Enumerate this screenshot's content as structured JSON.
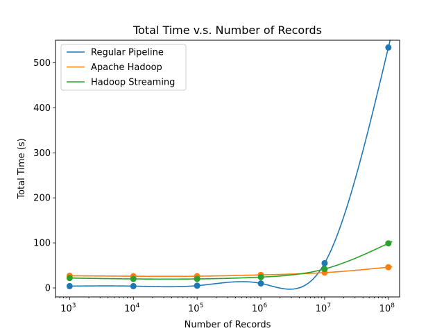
{
  "chart_data": {
    "type": "line",
    "title": "Total Time v.s. Number of Records",
    "xlabel": "Number of Records",
    "ylabel": "Total Time (s)",
    "x_scale": "log",
    "xlim": [
      600,
      150000000
    ],
    "ylim": [
      -20,
      550
    ],
    "x_ticks": [
      {
        "value": 1000,
        "base": "10",
        "exp": "3"
      },
      {
        "value": 10000,
        "base": "10",
        "exp": "4"
      },
      {
        "value": 100000,
        "base": "10",
        "exp": "5"
      },
      {
        "value": 1000000,
        "base": "10",
        "exp": "6"
      },
      {
        "value": 10000000,
        "base": "10",
        "exp": "7"
      },
      {
        "value": 100000000,
        "base": "10",
        "exp": "8"
      }
    ],
    "y_ticks": [
      0,
      100,
      200,
      300,
      400,
      500
    ],
    "grid": false,
    "legend_position": "top-left",
    "series": [
      {
        "name": "Regular Pipeline",
        "color": "#1f77b4",
        "x": [
          1000,
          10000,
          100000,
          1000000,
          10000000,
          100000000
        ],
        "y": [
          4,
          4,
          5,
          10,
          55,
          534
        ]
      },
      {
        "name": "Apache Hadoop",
        "color": "#ff7f0e",
        "x": [
          1000,
          10000,
          100000,
          1000000,
          10000000,
          100000000
        ],
        "y": [
          27,
          26,
          26,
          29,
          34,
          46
        ]
      },
      {
        "name": "Hadoop Streaming",
        "color": "#2ca02c",
        "x": [
          1000,
          10000,
          100000,
          1000000,
          10000000,
          100000000
        ],
        "y": [
          22,
          20,
          20,
          24,
          42,
          99
        ]
      }
    ]
  }
}
